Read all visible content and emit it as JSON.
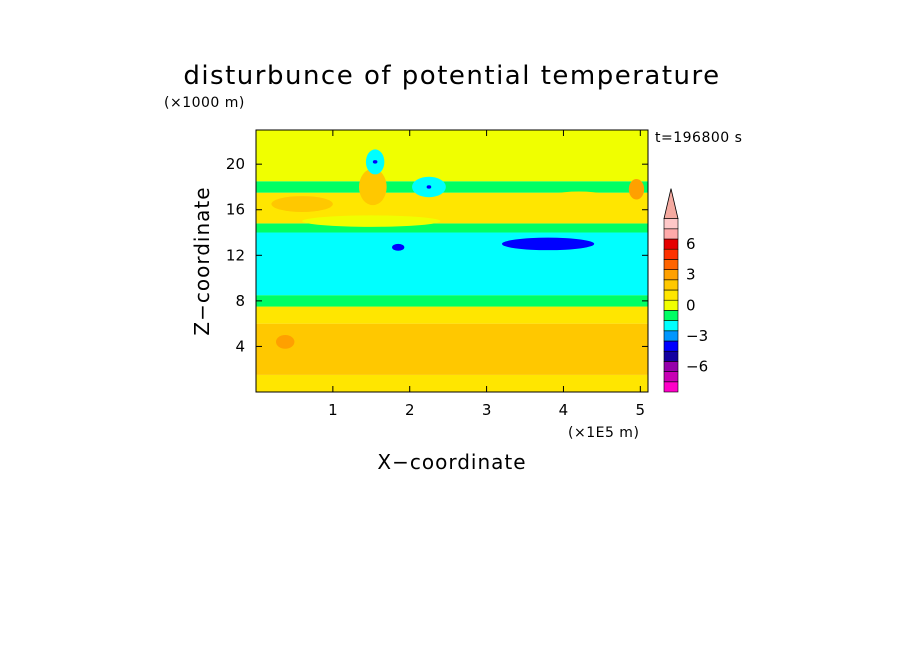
{
  "chart_data": {
    "type": "heatmap",
    "title": "disturbunce of potential temperature",
    "time_label": "t=196800 s",
    "xlabel": "X−coordinate",
    "ylabel": "Z−coordinate",
    "x_unit": "(×1E5 m)",
    "y_unit": "(×1000 m)",
    "xlim": [
      0,
      5.1
    ],
    "ylim": [
      0,
      23
    ],
    "x_ticks": [
      1,
      2,
      3,
      4,
      5
    ],
    "y_ticks": [
      4,
      8,
      12,
      16,
      20
    ],
    "grid": false,
    "legend": "colorbar-right",
    "colorbar": {
      "levels": [
        -8,
        -7,
        -6,
        -5,
        -4,
        -3,
        -2,
        -1,
        0,
        1,
        2,
        3,
        4,
        5,
        6,
        7,
        8
      ],
      "colors": [
        "#ff00c8",
        "#c800b4",
        "#9600aa",
        "#1400a0",
        "#0000ff",
        "#0096ff",
        "#00ffff",
        "#00ff64",
        "#f0ff00",
        "#ffe600",
        "#ffc800",
        "#ffa000",
        "#ff6400",
        "#ff3200",
        "#e60000",
        "#ffaaaa",
        "#ffc8c8"
      ],
      "labeled_levels": [
        -6,
        -3,
        0,
        3,
        6
      ],
      "extend": "max",
      "extend_color": "#f5aaa0"
    },
    "bands": [
      {
        "z": [
          0.0,
          1.5
        ],
        "value": 1.2
      },
      {
        "z": [
          1.5,
          6.0
        ],
        "value": 2.4
      },
      {
        "z": [
          6.0,
          7.5
        ],
        "value": 1.0
      },
      {
        "z": [
          7.5,
          8.5
        ],
        "value": -0.5
      },
      {
        "z": [
          8.5,
          14.0
        ],
        "value": -1.5
      },
      {
        "z": [
          14.0,
          14.8
        ],
        "value": -0.5
      },
      {
        "z": [
          14.8,
          17.5
        ],
        "value": 1.2
      },
      {
        "z": [
          17.5,
          18.5
        ],
        "value": -0.5
      },
      {
        "z": [
          18.5,
          23.0
        ],
        "value": 0.6
      }
    ],
    "features": [
      {
        "x": 0.38,
        "z": 4.4,
        "rx": 0.12,
        "rz": 0.6,
        "value": 3.3
      },
      {
        "x": 1.55,
        "z": 17.6,
        "rx": 0.07,
        "rz": 0.9,
        "value": 4.5
      },
      {
        "x": 1.52,
        "z": 18.0,
        "rx": 0.18,
        "rz": 1.6,
        "value": 2.6
      },
      {
        "x": 4.95,
        "z": 17.8,
        "rx": 0.1,
        "rz": 0.9,
        "value": 3.3
      },
      {
        "x": 2.25,
        "z": 18.0,
        "rx": 0.22,
        "rz": 0.9,
        "value": -1.5
      },
      {
        "x": 1.55,
        "z": 20.2,
        "rx": 0.12,
        "rz": 1.1,
        "value": -1.5
      },
      {
        "x": 3.8,
        "z": 13.0,
        "rx": 0.6,
        "rz": 0.55,
        "value": -3.5
      },
      {
        "x": 1.85,
        "z": 12.7,
        "rx": 0.08,
        "rz": 0.3,
        "value": -3.5
      },
      {
        "x": 2.25,
        "z": 18.0,
        "rx": 0.03,
        "rz": 0.15,
        "value": -3.5
      },
      {
        "x": 1.55,
        "z": 20.2,
        "rx": 0.03,
        "rz": 0.15,
        "value": -3.5
      },
      {
        "x": 0.6,
        "z": 16.5,
        "rx": 0.4,
        "rz": 0.7,
        "value": 2.2
      },
      {
        "x": 4.2,
        "z": 16.8,
        "rx": 0.5,
        "rz": 0.8,
        "value": 1.0
      },
      {
        "x": 1.5,
        "z": 15.0,
        "rx": 0.9,
        "rz": 0.5,
        "value": 0.3
      }
    ]
  }
}
